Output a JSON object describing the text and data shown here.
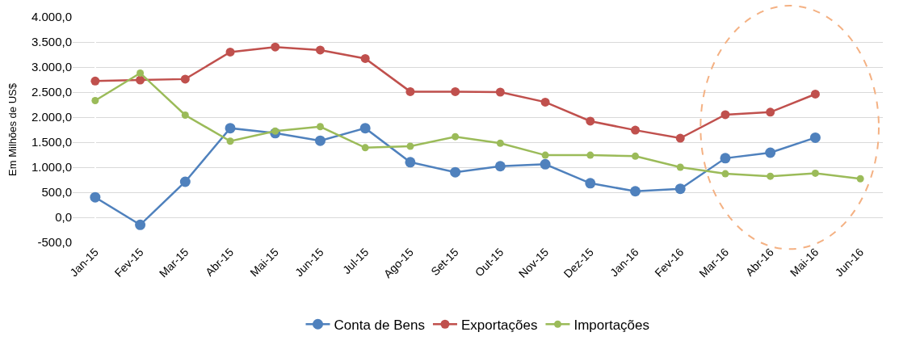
{
  "chart_data": {
    "type": "line",
    "ylabel": "Em Milhões de US$",
    "categories": [
      "Jan-15",
      "Fev-15",
      "Mar-15",
      "Abr-15",
      "Mai-15",
      "Jun-15",
      "Jul-15",
      "Ago-15",
      "Set-15",
      "Out-15",
      "Nov-15",
      "Dez-15",
      "Jan-16",
      "Fev-16",
      "Mar-16",
      "Abr-16",
      "Mai-16",
      "Jun-16"
    ],
    "series": [
      {
        "name": "Conta de Bens",
        "color": "#4f81bd",
        "values": [
          400,
          -150,
          710,
          1780,
          1680,
          1530,
          1780,
          1100,
          900,
          1020,
          1060,
          680,
          520,
          570,
          1180,
          1290,
          1590,
          null
        ]
      },
      {
        "name": "Exportações",
        "color": "#c0504d",
        "values": [
          2720,
          2740,
          2760,
          3300,
          3400,
          3340,
          3170,
          2510,
          2510,
          2500,
          2300,
          1920,
          1740,
          1580,
          2050,
          2100,
          2460,
          null
        ]
      },
      {
        "name": "Importações",
        "color": "#9bbb59",
        "values": [
          2330,
          2880,
          2040,
          1520,
          1720,
          1810,
          1390,
          1420,
          1610,
          1480,
          1240,
          1240,
          1220,
          1000,
          870,
          820,
          880,
          770
        ]
      }
    ],
    "ylim": [
      -500,
      4000
    ],
    "yticks": [
      {
        "value": -500,
        "label": "-500,0"
      },
      {
        "value": 0,
        "label": "0,0"
      },
      {
        "value": 500,
        "label": "500,0"
      },
      {
        "value": 1000,
        "label": "1.000,0"
      },
      {
        "value": 1500,
        "label": "1.500,0"
      },
      {
        "value": 2000,
        "label": "2.000,0"
      },
      {
        "value": 2500,
        "label": "2.500,0"
      },
      {
        "value": 3000,
        "label": "3.000,0"
      },
      {
        "value": 3500,
        "label": "3.500,0"
      },
      {
        "value": 4000,
        "label": "4.000,0"
      }
    ],
    "grid": "y",
    "legend": "bottom",
    "marker": "circle",
    "line_style": "solid"
  }
}
